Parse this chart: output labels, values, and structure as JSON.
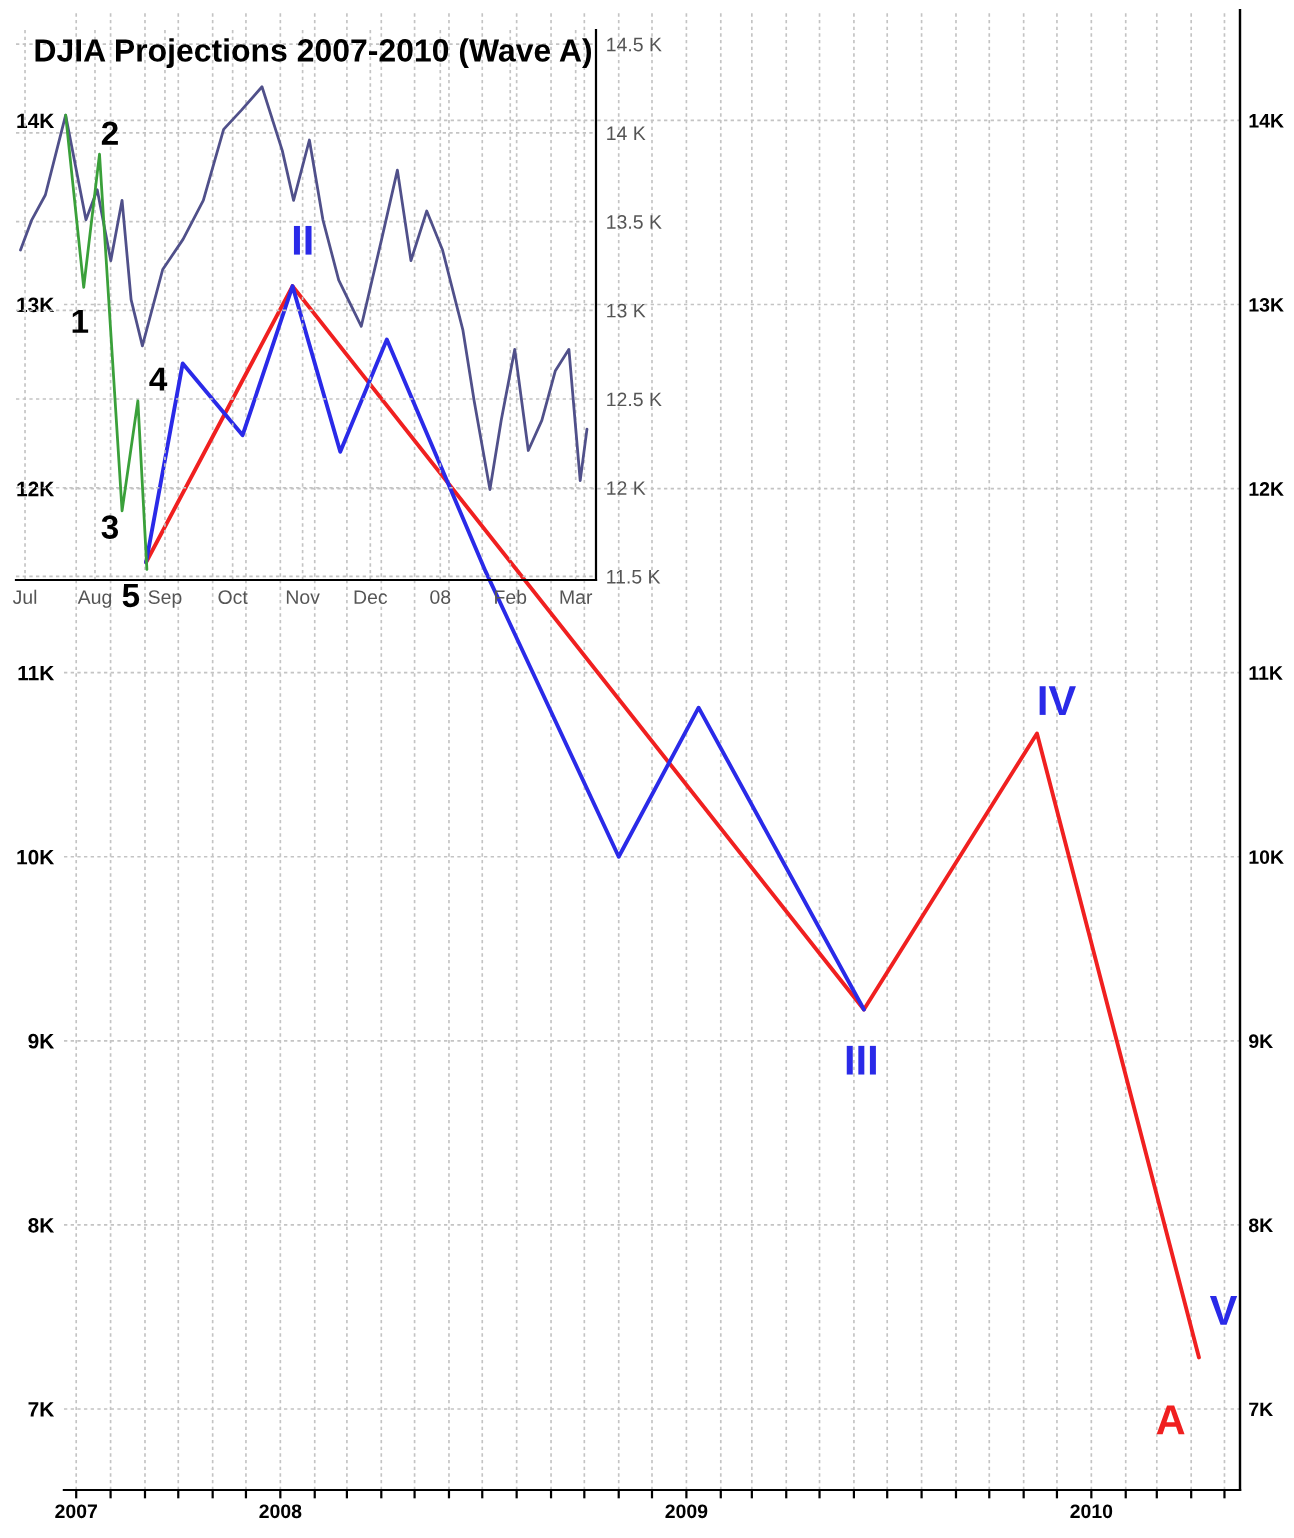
{
  "chart_data": [
    {
      "type": "line",
      "xlim": [
        "2007-06-20",
        "2010-05-15"
      ],
      "ylim": [
        6560,
        14600
      ],
      "xticks": [
        {
          "value": "2007-07-01",
          "label": "2007"
        },
        {
          "value": "2007-08-01",
          "label": null
        },
        {
          "value": "2007-09-01",
          "label": null
        },
        {
          "value": "2007-10-01",
          "label": null
        },
        {
          "value": "2007-11-01",
          "label": null
        },
        {
          "value": "2007-12-01",
          "label": null
        },
        {
          "value": "2008-01-01",
          "label": "2008"
        },
        {
          "value": "2008-02-01",
          "label": null
        },
        {
          "value": "2008-03-01",
          "label": null
        },
        {
          "value": "2008-04-01",
          "label": null
        },
        {
          "value": "2008-05-01",
          "label": null
        },
        {
          "value": "2008-06-01",
          "label": null
        },
        {
          "value": "2008-07-01",
          "label": null
        },
        {
          "value": "2008-08-01",
          "label": null
        },
        {
          "value": "2008-09-01",
          "label": null
        },
        {
          "value": "2008-10-01",
          "label": null
        },
        {
          "value": "2008-11-01",
          "label": null
        },
        {
          "value": "2008-12-01",
          "label": null
        },
        {
          "value": "2009-01-01",
          "label": "2009"
        },
        {
          "value": "2009-02-01",
          "label": null
        },
        {
          "value": "2009-03-01",
          "label": null
        },
        {
          "value": "2009-04-01",
          "label": null
        },
        {
          "value": "2009-05-01",
          "label": null
        },
        {
          "value": "2009-06-01",
          "label": null
        },
        {
          "value": "2009-07-01",
          "label": null
        },
        {
          "value": "2009-08-01",
          "label": null
        },
        {
          "value": "2009-09-01",
          "label": null
        },
        {
          "value": "2009-10-01",
          "label": null
        },
        {
          "value": "2009-11-01",
          "label": null
        },
        {
          "value": "2009-12-01",
          "label": null
        },
        {
          "value": "2010-01-01",
          "label": "2010"
        },
        {
          "value": "2010-02-01",
          "label": null
        },
        {
          "value": "2010-03-01",
          "label": null
        },
        {
          "value": "2010-04-01",
          "label": null
        },
        {
          "value": "2010-05-01",
          "label": null
        }
      ],
      "yticks": [
        {
          "value": 7000,
          "label": "7K"
        },
        {
          "value": 8000,
          "label": "8K"
        },
        {
          "value": 9000,
          "label": "9K"
        },
        {
          "value": 10000,
          "label": "10K"
        },
        {
          "value": 11000,
          "label": "11K"
        },
        {
          "value": 12000,
          "label": "12K"
        },
        {
          "value": 13000,
          "label": "13K"
        },
        {
          "value": 14000,
          "label": "14K"
        }
      ],
      "y2lim": [
        6560,
        14600
      ],
      "y2ticks": [
        {
          "value": 7000,
          "label": "7K"
        },
        {
          "value": 8000,
          "label": "8K"
        },
        {
          "value": 9000,
          "label": "9K"
        },
        {
          "value": 10000,
          "label": "10K"
        },
        {
          "value": 11000,
          "label": "11K"
        },
        {
          "value": 12000,
          "label": "12K"
        },
        {
          "value": 13000,
          "label": "13K"
        },
        {
          "value": 14000,
          "label": "14K"
        }
      ],
      "grid": true,
      "line_style": "solid",
      "marker": "none",
      "series": [
        {
          "color": "#f02020",
          "x": [
            "2007-09-02",
            "2008-01-12",
            "2009-06-10",
            "2009-11-13",
            "2010-04-08"
          ],
          "values": [
            11600,
            13100,
            9170,
            10670,
            7280
          ]
        },
        {
          "color": "#2a2ae8",
          "x": [
            "2007-09-02",
            "2007-10-05",
            "2007-11-28",
            "2008-01-12",
            "2008-02-24",
            "2008-04-06",
            "2008-07-04",
            "2008-11-01",
            "2009-01-12",
            "2009-06-10"
          ],
          "values": [
            11600,
            12680,
            12290,
            13100,
            12200,
            12810,
            11550,
            10000,
            10810,
            9170
          ]
        }
      ],
      "annotations": [
        "II",
        "III",
        "IV",
        "V",
        "A"
      ]
    },
    {
      "type": "line",
      "title": "DJIA Projections 2007-2010 (Wave A)",
      "xlim": [
        "2007-06-27",
        "2008-03-10"
      ],
      "ylim": [
        11480,
        14580
      ],
      "xticks": [
        {
          "value": "2007-07-01",
          "label": "Jul"
        },
        {
          "value": "2007-08-01",
          "label": "Aug"
        },
        {
          "value": "2007-09-01",
          "label": "Sep"
        },
        {
          "value": "2007-10-01",
          "label": "Oct"
        },
        {
          "value": "2007-11-01",
          "label": "Nov"
        },
        {
          "value": "2007-12-01",
          "label": "Dec"
        },
        {
          "value": "2008-01-01",
          "label": "08"
        },
        {
          "value": "2008-02-01",
          "label": "Feb"
        },
        {
          "value": "2008-03-01",
          "label": "Mar"
        }
      ],
      "yticks": [
        {
          "value": 11500,
          "label": "11.5 K"
        },
        {
          "value": 12000,
          "label": "12 K"
        },
        {
          "value": 12500,
          "label": "12.5 K"
        },
        {
          "value": 13000,
          "label": "13 K"
        },
        {
          "value": 13500,
          "label": "13.5 K"
        },
        {
          "value": 14000,
          "label": "14 K"
        },
        {
          "value": 14500,
          "label": "14.5 K"
        }
      ],
      "grid": true,
      "line_style": "solid",
      "marker": "none",
      "series": [
        {
          "color": "#50508a",
          "x": [
            "2007-06-29",
            "2007-07-04",
            "2007-07-10",
            "2007-07-15",
            "2007-07-19",
            "2007-07-28",
            "2007-08-02",
            "2007-08-08",
            "2007-08-13",
            "2007-08-17",
            "2007-08-22",
            "2007-08-31",
            "2007-09-09",
            "2007-09-18",
            "2007-09-27",
            "2007-10-05",
            "2007-10-14",
            "2007-10-23",
            "2007-10-28",
            "2007-11-04",
            "2007-11-10",
            "2007-11-17",
            "2007-11-27",
            "2007-12-06",
            "2007-12-13",
            "2007-12-19",
            "2007-12-26",
            "2008-01-02",
            "2008-01-11",
            "2008-01-16",
            "2008-01-23",
            "2008-01-28",
            "2008-02-03",
            "2008-02-09",
            "2008-02-15",
            "2008-02-21",
            "2008-02-27",
            "2008-03-03",
            "2008-03-06"
          ],
          "values": [
            13340,
            13510,
            13650,
            13900,
            14100,
            13510,
            13680,
            13280,
            13620,
            13060,
            12800,
            13230,
            13400,
            13620,
            14020,
            14130,
            14260,
            13900,
            13620,
            13960,
            13510,
            13170,
            12910,
            13400,
            13790,
            13280,
            13560,
            13340,
            12890,
            12490,
            11990,
            12380,
            12780,
            12210,
            12380,
            12660,
            12780,
            12040,
            12330
          ]
        },
        {
          "color": "#3aa03a",
          "x": [
            "2007-07-19",
            "2007-07-27",
            "2007-08-03",
            "2007-08-13",
            "2007-08-20",
            "2007-08-24"
          ],
          "values": [
            14100,
            13130,
            13880,
            11870,
            12490,
            11540
          ]
        }
      ],
      "annotations": [
        "1",
        "2",
        "3",
        "4",
        "5"
      ]
    }
  ]
}
